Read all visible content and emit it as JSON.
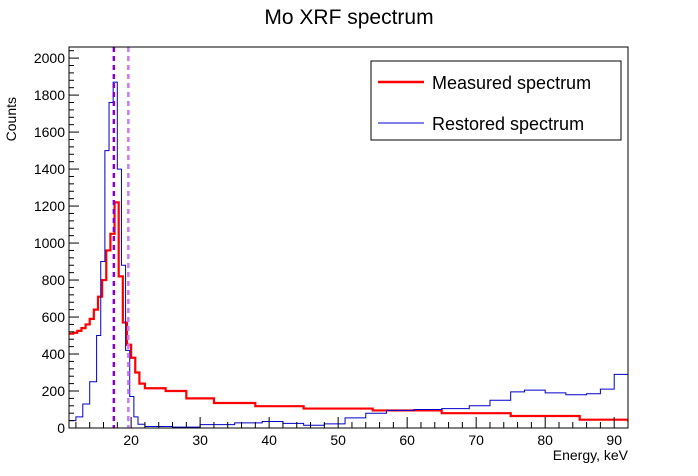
{
  "chart_data": {
    "type": "line",
    "title": "Mo XRF spectrum",
    "xlabel": "Energy, keV",
    "ylabel": "Counts",
    "xlim": [
      11,
      92
    ],
    "ylim": [
      0,
      2060
    ],
    "x_ticks": [
      20,
      30,
      40,
      50,
      60,
      70,
      80,
      90
    ],
    "y_ticks": [
      0,
      200,
      400,
      600,
      800,
      1000,
      1200,
      1400,
      1600,
      1800,
      2000
    ],
    "grid": false,
    "legend_position": "top-right",
    "series": [
      {
        "name": "Measured spectrum",
        "color": "#ff0000",
        "style": "step",
        "points": [
          [
            11,
            510
          ],
          [
            11.6,
            515
          ],
          [
            12.2,
            525
          ],
          [
            12.8,
            540
          ],
          [
            13.4,
            560
          ],
          [
            14,
            590
          ],
          [
            14.6,
            640
          ],
          [
            15.2,
            710
          ],
          [
            15.8,
            800
          ],
          [
            16.4,
            960
          ],
          [
            17,
            1050
          ],
          [
            17.6,
            1220
          ],
          [
            18.2,
            820
          ],
          [
            18.8,
            570
          ],
          [
            19.4,
            450
          ],
          [
            20,
            380
          ],
          [
            20.6,
            300
          ],
          [
            21.2,
            240
          ],
          [
            22,
            215
          ],
          [
            25,
            200
          ],
          [
            28,
            160
          ],
          [
            32,
            135
          ],
          [
            38,
            118
          ],
          [
            45,
            105
          ],
          [
            55,
            95
          ],
          [
            65,
            80
          ],
          [
            75,
            65
          ],
          [
            85,
            45
          ],
          [
            92,
            35
          ]
        ]
      },
      {
        "name": "Restored spectrum",
        "color": "#0000cc",
        "style": "step",
        "points": [
          [
            11,
            40
          ],
          [
            12,
            60
          ],
          [
            13,
            130
          ],
          [
            14,
            250
          ],
          [
            15,
            500
          ],
          [
            15.6,
            900
          ],
          [
            16.2,
            1500
          ],
          [
            16.8,
            1760
          ],
          [
            17.4,
            1870
          ],
          [
            18,
            1400
          ],
          [
            18.6,
            880
          ],
          [
            19.2,
            420
          ],
          [
            19.8,
            170
          ],
          [
            20.4,
            60
          ],
          [
            21,
            20
          ],
          [
            22,
            8
          ],
          [
            26,
            5
          ],
          [
            30,
            18
          ],
          [
            35,
            28
          ],
          [
            39,
            35
          ],
          [
            42,
            25
          ],
          [
            45,
            15
          ],
          [
            48,
            22
          ],
          [
            51,
            55
          ],
          [
            54,
            80
          ],
          [
            57,
            95
          ],
          [
            61,
            100
          ],
          [
            65,
            105
          ],
          [
            69,
            120
          ],
          [
            72,
            150
          ],
          [
            75,
            195
          ],
          [
            77,
            205
          ],
          [
            80,
            190
          ],
          [
            83,
            180
          ],
          [
            86,
            185
          ],
          [
            88,
            210
          ],
          [
            90,
            290
          ],
          [
            92,
            380
          ]
        ]
      }
    ],
    "vertical_lines": [
      {
        "x": 17.5,
        "color": "#8800cc",
        "style": "dashed"
      },
      {
        "x": 19.6,
        "color": "#cc77ff",
        "style": "dashed"
      }
    ]
  }
}
